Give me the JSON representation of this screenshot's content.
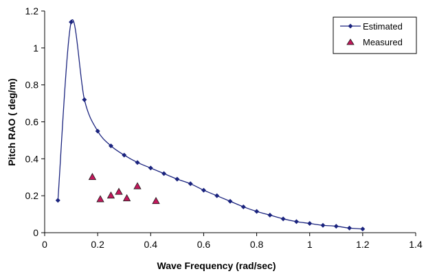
{
  "chart_data": {
    "type": "scatter",
    "xlabel": "Wave Frequency (rad/sec)",
    "ylabel": "Pitch RAO ( deg/m)",
    "xlim": [
      0,
      1.4
    ],
    "ylim": [
      0,
      1.2
    ],
    "xticks": [
      0,
      0.2,
      0.4,
      0.6,
      0.8,
      1,
      1.2,
      1.4
    ],
    "yticks": [
      0,
      0.2,
      0.4,
      0.6,
      0.8,
      1,
      1.2
    ],
    "xtick_labels": [
      "0",
      "0.2",
      "0.4",
      "0.6",
      "0.8",
      "1",
      "1.2",
      "1.4"
    ],
    "ytick_labels": [
      "0",
      "0.2",
      "0.4",
      "0.6",
      "0.8",
      "1",
      "1.2"
    ],
    "grid": false,
    "legend_position": "top-right",
    "series": [
      {
        "name": "Estimated",
        "style": "line-with-diamond-markers",
        "color": "#1a237e",
        "x": [
          0.05,
          0.1,
          0.15,
          0.2,
          0.25,
          0.3,
          0.35,
          0.4,
          0.45,
          0.5,
          0.55,
          0.6,
          0.65,
          0.7,
          0.75,
          0.8,
          0.85,
          0.9,
          0.95,
          1.0,
          1.05,
          1.1,
          1.15,
          1.2
        ],
        "y": [
          0.175,
          1.14,
          0.72,
          0.55,
          0.47,
          0.42,
          0.38,
          0.35,
          0.32,
          0.29,
          0.265,
          0.23,
          0.2,
          0.17,
          0.14,
          0.115,
          0.095,
          0.075,
          0.06,
          0.05,
          0.04,
          0.035,
          0.025,
          0.02
        ]
      },
      {
        "name": "Measured",
        "style": "triangle-markers",
        "color": "#c2185b",
        "x": [
          0.18,
          0.21,
          0.25,
          0.28,
          0.31,
          0.35,
          0.42
        ],
        "y": [
          0.3,
          0.18,
          0.2,
          0.22,
          0.185,
          0.25,
          0.17
        ]
      }
    ]
  }
}
